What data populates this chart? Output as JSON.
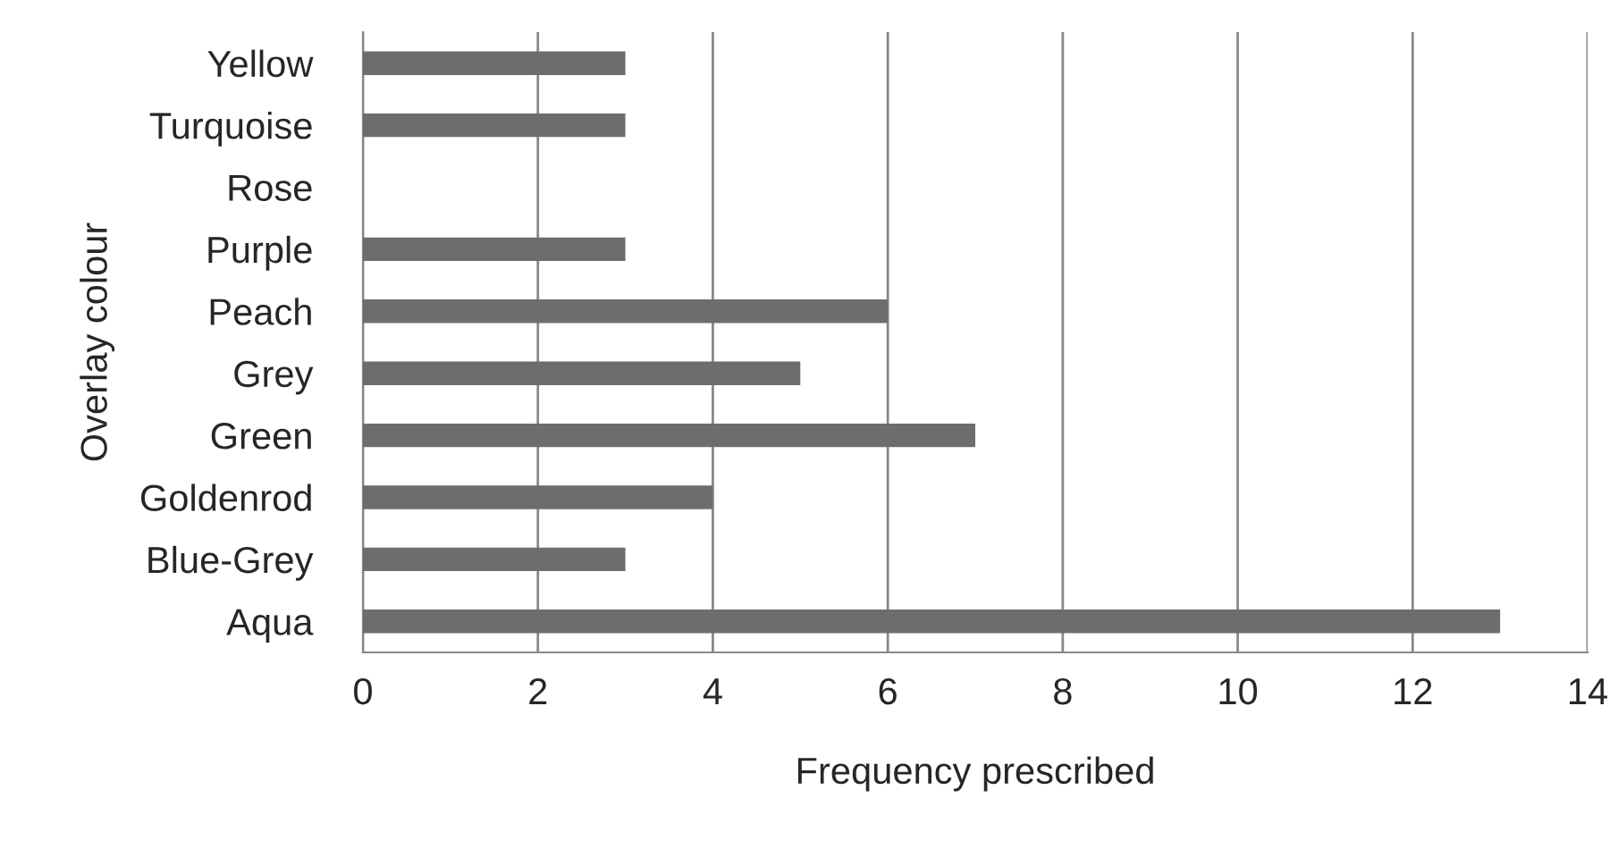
{
  "chart_data": {
    "type": "bar",
    "orientation": "horizontal",
    "xlabel": "Frequency prescribed",
    "ylabel": "Overlay colour",
    "categories": [
      "Yellow",
      "Turquoise",
      "Rose",
      "Purple",
      "Peach",
      "Grey",
      "Green",
      "Goldenrod",
      "Blue-Grey",
      "Aqua"
    ],
    "values": [
      3,
      3,
      0,
      3,
      6,
      5,
      7,
      4,
      3,
      13
    ],
    "color": "#6d6d6d",
    "xlim": [
      0,
      14
    ],
    "xticks": [
      0,
      2,
      4,
      6,
      8,
      10,
      12,
      14
    ],
    "grid": "x",
    "legend": false
  }
}
